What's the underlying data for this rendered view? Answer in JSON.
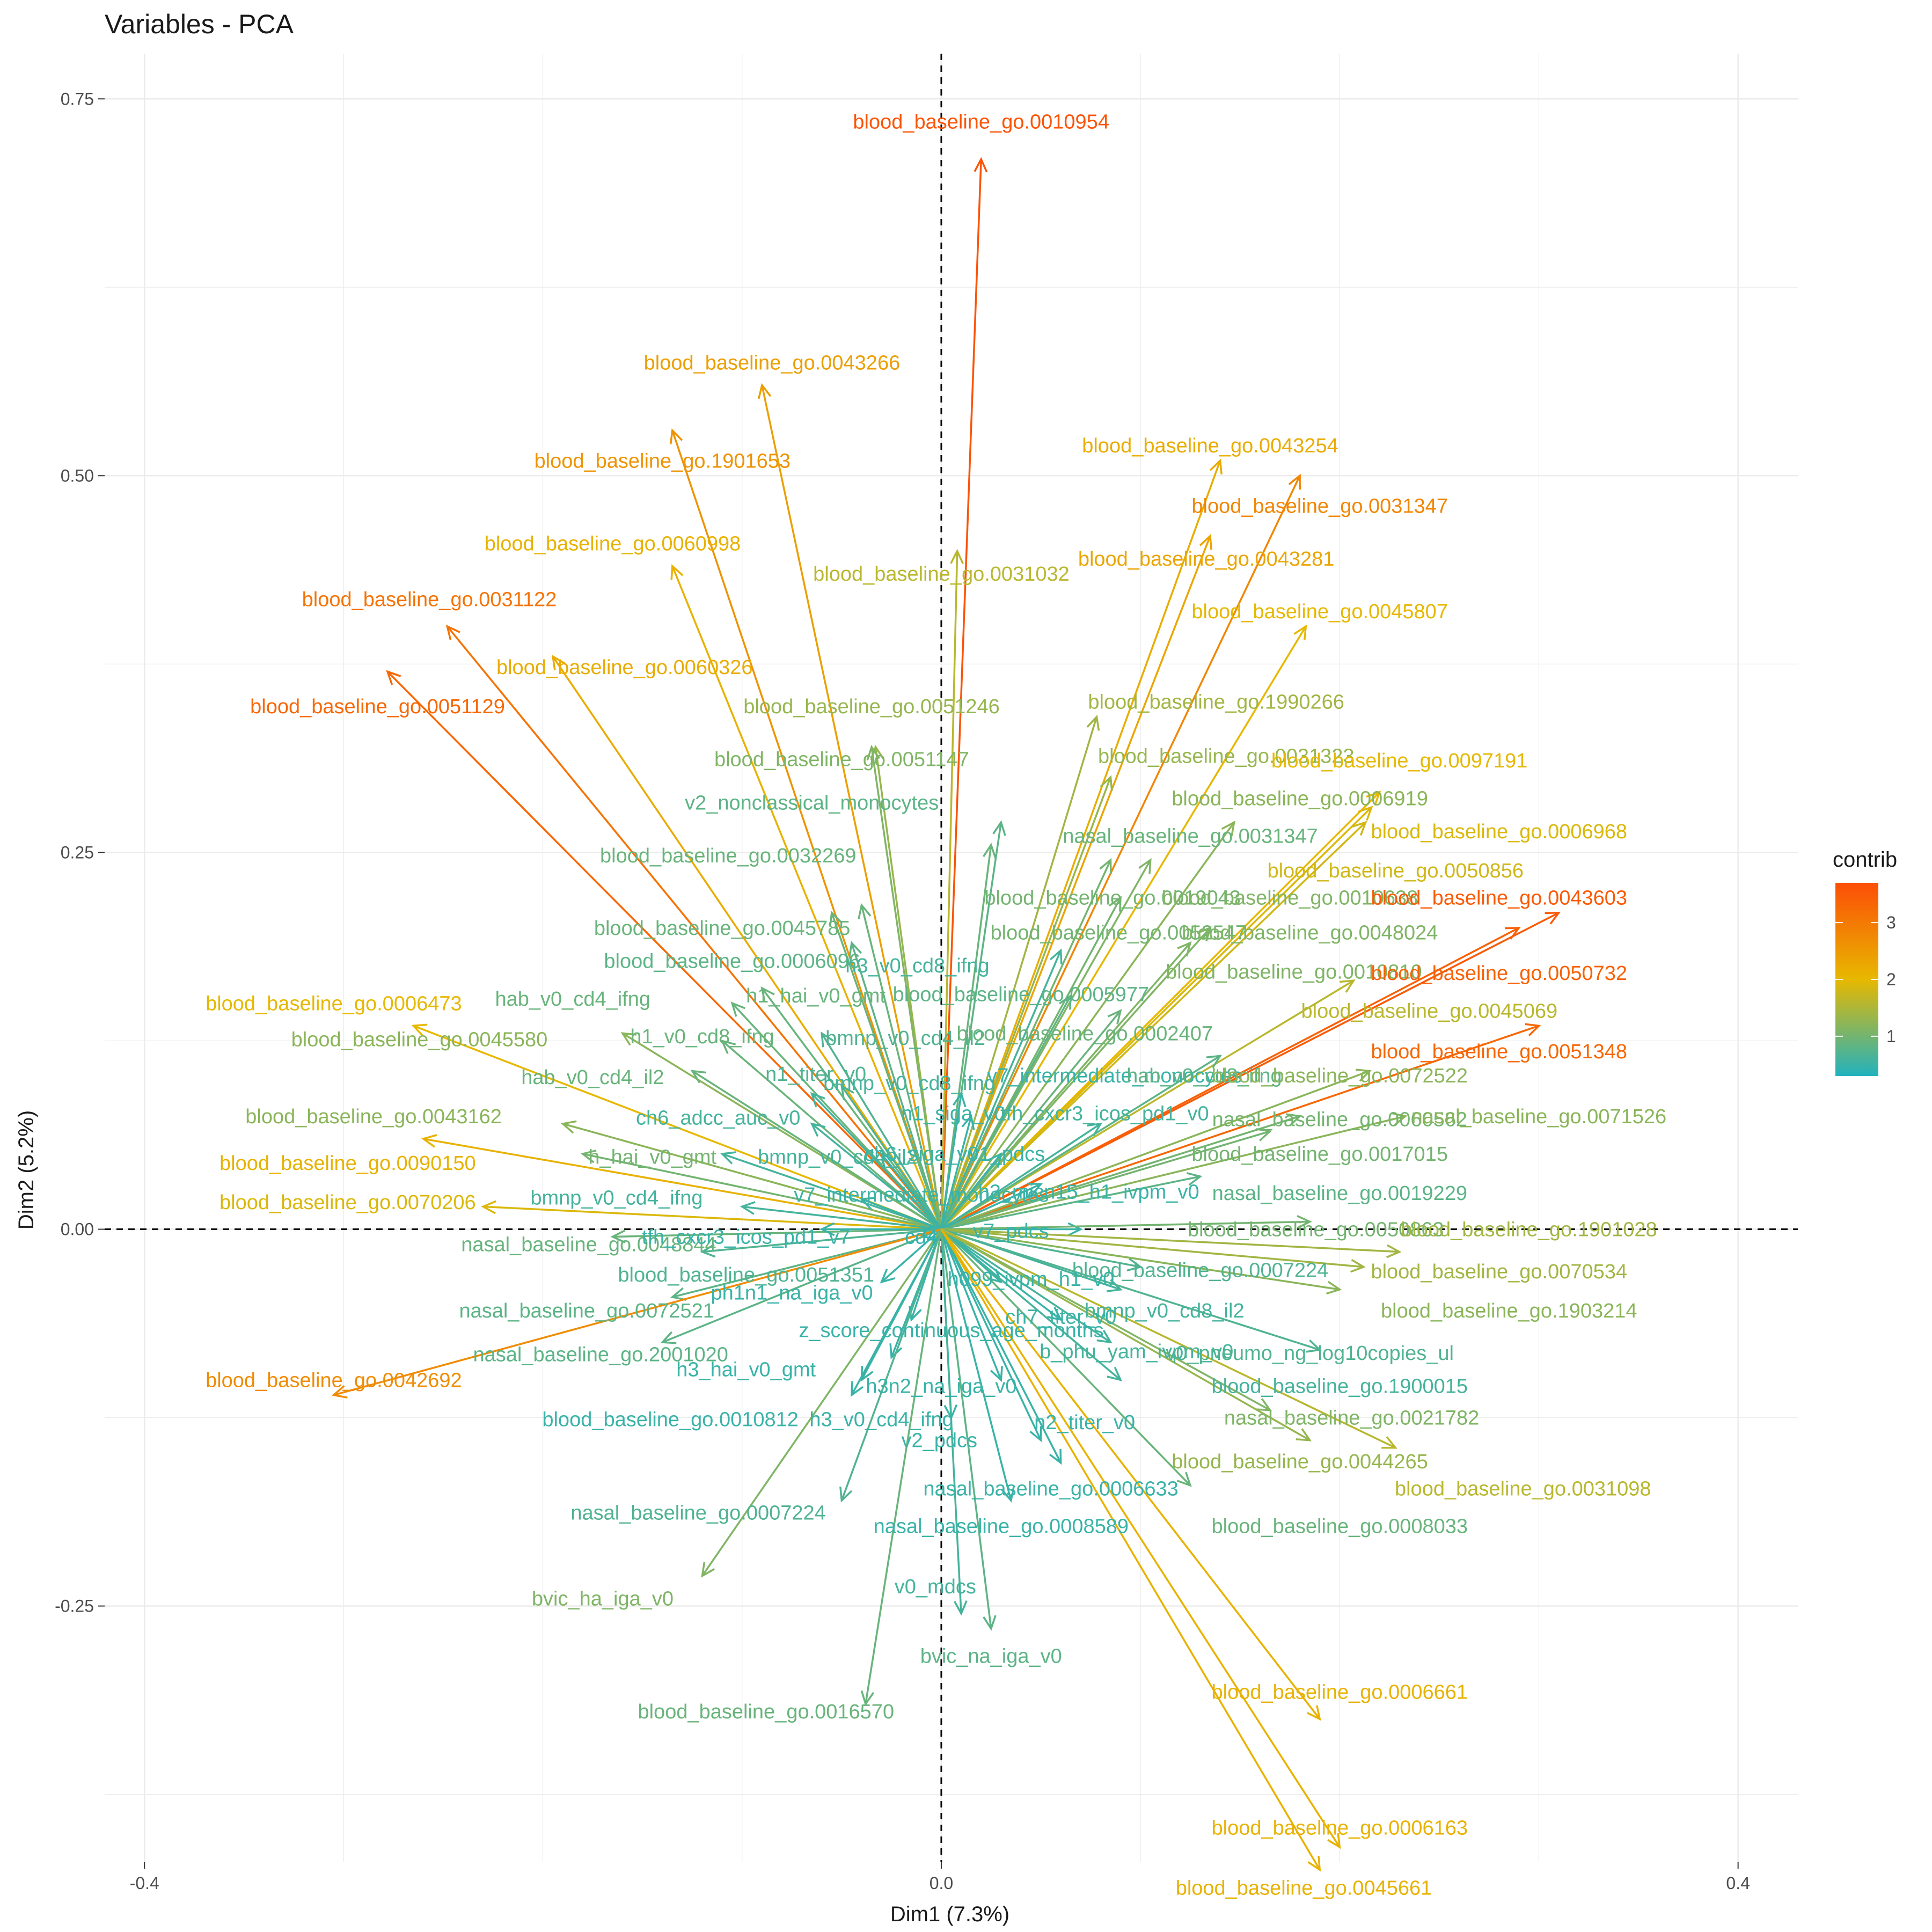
{
  "chart_data": {
    "type": "scatter",
    "title": "Variables - PCA",
    "xlabel": "Dim1 (7.3%)",
    "ylabel": "Dim2 (5.2%)",
    "xlim": [
      -0.42,
      0.43
    ],
    "ylim": [
      -0.42,
      0.78
    ],
    "x_ticks": [
      -0.4,
      0.0,
      0.4
    ],
    "x_tick_labels": [
      "-0.4",
      "0.0",
      "0.4"
    ],
    "y_ticks": [
      -0.25,
      0.0,
      0.25,
      0.5,
      0.75
    ],
    "y_tick_labels": [
      "-0.25",
      "0.00",
      "0.25",
      "0.50",
      "0.75"
    ],
    "grid": true,
    "legend": {
      "title": "contrib",
      "placement": "right",
      "ticks": [
        "1",
        "2",
        "3"
      ],
      "tick_values": [
        1,
        2,
        3
      ],
      "range": [
        0.3,
        3.7
      ]
    },
    "colors": {
      "low": "#22B2BE",
      "mid": "#E7B800",
      "high": "#FC4E07",
      "arrow_default": "#7FA9A8"
    },
    "variables": [
      {
        "name": "blood_baseline_go.0010954",
        "x": 0.02,
        "y": 0.71,
        "contrib": 3.6
      },
      {
        "name": "blood_baseline_go.0043266",
        "x": -0.09,
        "y": 0.56,
        "contrib": 2.4
      },
      {
        "name": "blood_baseline_go.1901653",
        "x": -0.135,
        "y": 0.53,
        "contrib": 2.6
      },
      {
        "name": "blood_baseline_go.0043254",
        "x": 0.14,
        "y": 0.51,
        "contrib": 2.2
      },
      {
        "name": "blood_baseline_go.0031347",
        "x": 0.18,
        "y": 0.5,
        "contrib": 2.8
      },
      {
        "name": "blood_baseline_go.0060998",
        "x": -0.135,
        "y": 0.44,
        "contrib": 2.1
      },
      {
        "name": "blood_baseline_go.0031032",
        "x": 0.008,
        "y": 0.45,
        "contrib": 1.6
      },
      {
        "name": "blood_baseline_go.0043281",
        "x": 0.135,
        "y": 0.46,
        "contrib": 2.3
      },
      {
        "name": "blood_baseline_go.0031122",
        "x": -0.248,
        "y": 0.4,
        "contrib": 3.1
      },
      {
        "name": "blood_baseline_go.0045807",
        "x": 0.183,
        "y": 0.4,
        "contrib": 2.0
      },
      {
        "name": "blood_baseline_go.0060326",
        "x": -0.195,
        "y": 0.38,
        "contrib": 2.2
      },
      {
        "name": "blood_baseline_go.0051129",
        "x": -0.278,
        "y": 0.37,
        "contrib": 3.3
      },
      {
        "name": "blood_baseline_go.0051246",
        "x": -0.033,
        "y": 0.32,
        "contrib": 1.3
      },
      {
        "name": "blood_baseline_go.1990266",
        "x": 0.078,
        "y": 0.34,
        "contrib": 1.4
      },
      {
        "name": "blood_baseline_go.0051147",
        "x": -0.035,
        "y": 0.32,
        "contrib": 1.1
      },
      {
        "name": "blood_baseline_go.0031323",
        "x": 0.085,
        "y": 0.3,
        "contrib": 1.3
      },
      {
        "name": "v2_nonclassical_monocytes",
        "x": 0.03,
        "y": 0.27,
        "contrib": 0.8
      },
      {
        "name": "blood_baseline_go.0097191",
        "x": 0.22,
        "y": 0.29,
        "contrib": 2.0
      },
      {
        "name": "blood_baseline_go.0006919",
        "x": 0.147,
        "y": 0.27,
        "contrib": 1.2
      },
      {
        "name": "nasal_baseline_go.0031347",
        "x": 0.025,
        "y": 0.255,
        "contrib": 0.9
      },
      {
        "name": "blood_baseline_go.0006968",
        "x": 0.216,
        "y": 0.28,
        "contrib": 1.9
      },
      {
        "name": "blood_baseline_go.0032269",
        "x": -0.04,
        "y": 0.215,
        "contrib": 0.9
      },
      {
        "name": "blood_baseline_go.0050856",
        "x": 0.213,
        "y": 0.27,
        "contrib": 1.8
      },
      {
        "name": "blood_baseline_go.0019043",
        "x": 0.085,
        "y": 0.245,
        "contrib": 1.0
      },
      {
        "name": "blood_baseline_go.0010638",
        "x": 0.105,
        "y": 0.245,
        "contrib": 1.1
      },
      {
        "name": "blood_baseline_go.0043603",
        "x": 0.31,
        "y": 0.21,
        "contrib": 3.5
      },
      {
        "name": "blood_baseline_go.0045785",
        "x": -0.055,
        "y": 0.21,
        "contrib": 0.9
      },
      {
        "name": "blood_baseline_go.0052547",
        "x": 0.09,
        "y": 0.22,
        "contrib": 1.0
      },
      {
        "name": "blood_baseline_go.0048024",
        "x": 0.135,
        "y": 0.2,
        "contrib": 1.1
      },
      {
        "name": "blood_baseline_go.0006096",
        "x": -0.045,
        "y": 0.19,
        "contrib": 0.8
      },
      {
        "name": "h3_v0_cd8_ifng",
        "x": 0.06,
        "y": 0.185,
        "contrib": 0.6
      },
      {
        "name": "blood_baseline_go.0010810",
        "x": 0.125,
        "y": 0.19,
        "contrib": 1.1
      },
      {
        "name": "blood_baseline_go.0050732",
        "x": 0.29,
        "y": 0.2,
        "contrib": 3.4
      },
      {
        "name": "blood_baseline_go.0006473",
        "x": -0.265,
        "y": 0.135,
        "contrib": 2.0
      },
      {
        "name": "hab_v0_cd4_ifng",
        "x": -0.105,
        "y": 0.15,
        "contrib": 0.9
      },
      {
        "name": "h1_hai_v0_gmt",
        "x": -0.09,
        "y": 0.16,
        "contrib": 0.9
      },
      {
        "name": "blood_baseline_go.0005977",
        "x": 0.065,
        "y": 0.155,
        "contrib": 0.8
      },
      {
        "name": "blood_baseline_go.0045069",
        "x": 0.207,
        "y": 0.165,
        "contrib": 1.6
      },
      {
        "name": "blood_baseline_go.0045580",
        "x": -0.16,
        "y": 0.13,
        "contrib": 1.2
      },
      {
        "name": "h1_v0_cd8_ifng",
        "x": -0.11,
        "y": 0.125,
        "contrib": 0.9
      },
      {
        "name": "bmnp_v0_cd4_il2",
        "x": -0.06,
        "y": 0.13,
        "contrib": 0.7
      },
      {
        "name": "blood_baseline_go.0002407",
        "x": 0.09,
        "y": 0.145,
        "contrib": 0.9
      },
      {
        "name": "blood_baseline_go.0051348",
        "x": 0.3,
        "y": 0.135,
        "contrib": 3.3
      },
      {
        "name": "hab_v0_cd4_il2",
        "x": -0.125,
        "y": 0.105,
        "contrib": 0.9
      },
      {
        "name": "n1_titer_v0",
        "x": -0.05,
        "y": 0.095,
        "contrib": 0.7
      },
      {
        "name": "bmnp_v0_cd8_ifng",
        "x": -0.065,
        "y": 0.09,
        "contrib": 0.6
      },
      {
        "name": "v7_intermediate_monocytes",
        "x": 0.01,
        "y": 0.09,
        "contrib": 0.5
      },
      {
        "name": "hab_v0_cd8_ifng",
        "x": 0.14,
        "y": 0.115,
        "contrib": 0.8
      },
      {
        "name": "blood_baseline_go.0072522",
        "x": 0.215,
        "y": 0.105,
        "contrib": 1.2
      },
      {
        "name": "blood_baseline_go.0043162",
        "x": -0.19,
        "y": 0.07,
        "contrib": 1.2
      },
      {
        "name": "ch6_adcc_auc_v0",
        "x": -0.065,
        "y": 0.07,
        "contrib": 0.6
      },
      {
        "name": "h1_siga_v0",
        "x": 0.015,
        "y": 0.075,
        "contrib": 0.5
      },
      {
        "name": "tfh_cxcr3_icos_pd1_v0",
        "x": 0.08,
        "y": 0.07,
        "contrib": 0.6
      },
      {
        "name": "nasal_baseline_go.0060562",
        "x": 0.18,
        "y": 0.075,
        "contrib": 1.0
      },
      {
        "name": "nasal_baseline_go.0071526",
        "x": 0.233,
        "y": 0.075,
        "contrib": 1.2
      },
      {
        "name": "blood_baseline_go.0090150",
        "x": -0.26,
        "y": 0.06,
        "contrib": 2.1
      },
      {
        "name": "h_hai_v0_gmt",
        "x": -0.18,
        "y": 0.05,
        "contrib": 1.0
      },
      {
        "name": "bmnp_v0_cd4_il2",
        "x": -0.11,
        "y": 0.05,
        "contrib": 0.6
      },
      {
        "name": "ch6_siga_v0",
        "x": -0.03,
        "y": 0.05,
        "contrib": 0.5
      },
      {
        "name": "v1_pdcs",
        "x": 0.03,
        "y": 0.05,
        "contrib": 0.5
      },
      {
        "name": "blood_baseline_go.0017015",
        "x": 0.165,
        "y": 0.065,
        "contrib": 1.0
      },
      {
        "name": "blood_baseline_go.0070206",
        "x": -0.23,
        "y": 0.015,
        "contrib": 1.9
      },
      {
        "name": "bmnp_v0_cd4_ifng",
        "x": -0.1,
        "y": 0.015,
        "contrib": 0.6
      },
      {
        "name": "v7_intermediate_monocytes",
        "x": -0.04,
        "y": 0.02,
        "contrib": 0.5
      },
      {
        "name": "h3_micn15_h1_ivpm_v0",
        "x": 0.05,
        "y": 0.03,
        "contrib": 0.5
      },
      {
        "name": "nasal_baseline_go.0019229",
        "x": 0.13,
        "y": 0.035,
        "contrib": 0.8
      },
      {
        "name": "nasal_baseline_go.0048844",
        "x": -0.165,
        "y": -0.005,
        "contrib": 0.9
      },
      {
        "name": "tfh_cxcr3_icos_pd1_v7",
        "x": -0.06,
        "y": 0.0,
        "contrib": 0.5
      },
      {
        "name": "cd4",
        "x": -0.01,
        "y": -0.005,
        "contrib": 0.4
      },
      {
        "name": "v7_pdcs",
        "x": 0.07,
        "y": 0.0,
        "contrib": 0.5
      },
      {
        "name": "blood_baseline_go.0050863",
        "x": 0.185,
        "y": 0.005,
        "contrib": 1.0
      },
      {
        "name": "blood_baseline_go.1901028",
        "x": 0.23,
        "y": -0.015,
        "contrib": 1.4
      },
      {
        "name": "blood_baseline_go.0051351",
        "x": -0.12,
        "y": -0.015,
        "contrib": 0.7
      },
      {
        "name": "blood_baseline_go.0007224",
        "x": 0.1,
        "y": -0.025,
        "contrib": 0.7
      },
      {
        "name": "blood_baseline_go.0070534",
        "x": 0.212,
        "y": -0.025,
        "contrib": 1.4
      },
      {
        "name": "ph1n1_na_iga_v0",
        "x": -0.03,
        "y": -0.035,
        "contrib": 0.5
      },
      {
        "name": "h099_ivpm_h1_v0",
        "x": 0.03,
        "y": -0.035,
        "contrib": 0.5
      },
      {
        "name": "nasal_baseline_go.0072521",
        "x": -0.135,
        "y": -0.045,
        "contrib": 0.8
      },
      {
        "name": "bmnp_v0_cd8_il2",
        "x": 0.09,
        "y": -0.04,
        "contrib": 0.6
      },
      {
        "name": "blood_baseline_go.1903214",
        "x": 0.2,
        "y": -0.04,
        "contrib": 1.2
      },
      {
        "name": "ch7_titer_v0",
        "x": 0.06,
        "y": -0.06,
        "contrib": 0.5
      },
      {
        "name": "z_score_continuous_age_months",
        "x": -0.015,
        "y": -0.06,
        "contrib": 0.5
      },
      {
        "name": "nasal_baseline_go.2001020",
        "x": -0.14,
        "y": -0.075,
        "contrib": 0.8
      },
      {
        "name": "b_phu_yam_ivpm_v0",
        "x": 0.085,
        "y": -0.075,
        "contrib": 0.6
      },
      {
        "name": "v0_pneumo_ng_log10copies_ul",
        "x": 0.19,
        "y": -0.08,
        "contrib": 0.7
      },
      {
        "name": "h3_hai_v0_gmt",
        "x": -0.025,
        "y": -0.085,
        "contrib": 0.5
      },
      {
        "name": "h3n2_na_iga_v0",
        "x": 0.03,
        "y": -0.1,
        "contrib": 0.5
      },
      {
        "name": "blood_baseline_go.1900015",
        "x": 0.09,
        "y": -0.1,
        "contrib": 0.6
      },
      {
        "name": "blood_baseline_go.0042692",
        "x": -0.305,
        "y": -0.11,
        "contrib": 2.7
      },
      {
        "name": "blood_baseline_go.0010812",
        "x": -0.04,
        "y": -0.1,
        "contrib": 0.5
      },
      {
        "name": "h3_v0_cd4_ifng",
        "x": -0.045,
        "y": -0.11,
        "contrib": 0.5
      },
      {
        "name": "nasal_baseline_go.0021782",
        "x": 0.165,
        "y": -0.12,
        "contrib": 1.1
      },
      {
        "name": "n2_titer_v0",
        "x": 0.05,
        "y": -0.14,
        "contrib": 0.5
      },
      {
        "name": "v2_pdcs",
        "x": 0.005,
        "y": -0.125,
        "contrib": 0.5
      },
      {
        "name": "blood_baseline_go.0044265",
        "x": 0.185,
        "y": -0.14,
        "contrib": 1.3
      },
      {
        "name": "blood_baseline_go.0031098",
        "x": 0.228,
        "y": -0.145,
        "contrib": 1.6
      },
      {
        "name": "nasal_baseline_go.0006633",
        "x": 0.06,
        "y": -0.155,
        "contrib": 0.5
      },
      {
        "name": "nasal_baseline_go.0007224",
        "x": -0.05,
        "y": -0.18,
        "contrib": 0.7
      },
      {
        "name": "nasal_baseline_go.0008589",
        "x": 0.035,
        "y": -0.18,
        "contrib": 0.5
      },
      {
        "name": "blood_baseline_go.0008033",
        "x": 0.125,
        "y": -0.17,
        "contrib": 0.9
      },
      {
        "name": "bvic_ha_iga_v0",
        "x": -0.12,
        "y": -0.23,
        "contrib": 1.1
      },
      {
        "name": "v0_mdcs",
        "x": 0.01,
        "y": -0.255,
        "contrib": 0.6
      },
      {
        "name": "bvic_na_iga_v0",
        "x": 0.025,
        "y": -0.265,
        "contrib": 0.8
      },
      {
        "name": "blood_baseline_go.0016570",
        "x": -0.038,
        "y": -0.315,
        "contrib": 0.9
      },
      {
        "name": "blood_baseline_go.0006661",
        "x": 0.19,
        "y": -0.325,
        "contrib": 2.1
      },
      {
        "name": "blood_baseline_go.0006163",
        "x": 0.2,
        "y": -0.41,
        "contrib": 2.1
      },
      {
        "name": "blood_baseline_go.0045661",
        "x": 0.19,
        "y": -0.425,
        "contrib": 2.1
      }
    ],
    "label_anchors": [
      [
        0.02,
        0.735
      ],
      [
        -0.085,
        0.575
      ],
      [
        -0.14,
        0.51
      ],
      [
        0.135,
        0.52
      ],
      [
        0.19,
        0.48
      ],
      [
        -0.165,
        0.455
      ],
      [
        0.0,
        0.435
      ],
      [
        0.133,
        0.445
      ],
      [
        -0.257,
        0.418
      ],
      [
        0.19,
        0.41
      ],
      [
        -0.159,
        0.373
      ],
      [
        -0.283,
        0.347
      ],
      [
        -0.035,
        0.347
      ],
      [
        0.138,
        0.35
      ],
      [
        -0.05,
        0.312
      ],
      [
        0.143,
        0.314
      ],
      [
        -0.065,
        0.283
      ],
      [
        0.23,
        0.311
      ],
      [
        0.18,
        0.286
      ],
      [
        0.125,
        0.261
      ],
      [
        0.28,
        0.264
      ],
      [
        -0.107,
        0.248
      ],
      [
        0.228,
        0.238
      ],
      [
        0.086,
        0.22
      ],
      [
        0.175,
        0.22
      ],
      [
        0.28,
        0.22
      ],
      [
        -0.11,
        0.2
      ],
      [
        0.089,
        0.197
      ],
      [
        0.185,
        0.197
      ],
      [
        -0.105,
        0.178
      ],
      [
        -0.012,
        0.175
      ],
      [
        0.177,
        0.171
      ],
      [
        0.28,
        0.17
      ],
      [
        -0.305,
        0.15
      ],
      [
        -0.185,
        0.153
      ],
      [
        -0.063,
        0.155
      ],
      [
        0.04,
        0.156
      ],
      [
        0.245,
        0.145
      ],
      [
        -0.262,
        0.126
      ],
      [
        -0.12,
        0.128
      ],
      [
        -0.018,
        0.127
      ],
      [
        0.072,
        0.13
      ],
      [
        0.28,
        0.118
      ],
      [
        -0.175,
        0.101
      ],
      [
        -0.063,
        0.103
      ],
      [
        -0.016,
        0.097
      ],
      [
        0.087,
        0.102
      ],
      [
        0.132,
        0.102
      ],
      [
        0.2,
        0.102
      ],
      [
        -0.285,
        0.075
      ],
      [
        -0.112,
        0.074
      ],
      [
        0.006,
        0.077
      ],
      [
        0.082,
        0.077
      ],
      [
        0.2,
        0.073
      ],
      [
        0.3,
        0.075
      ],
      [
        -0.298,
        0.044
      ],
      [
        -0.145,
        0.048
      ],
      [
        -0.052,
        0.048
      ],
      [
        -0.01,
        0.05
      ],
      [
        0.033,
        0.05
      ],
      [
        0.19,
        0.05
      ],
      [
        -0.298,
        0.018
      ],
      [
        -0.163,
        0.021
      ],
      [
        -0.01,
        0.023
      ],
      [
        0.074,
        0.025
      ],
      [
        0.2,
        0.024
      ],
      [
        -0.177,
        -0.01
      ],
      [
        -0.098,
        -0.005
      ],
      [
        -0.01,
        -0.005
      ],
      [
        0.035,
        -0.001
      ],
      [
        0.188,
        0.0
      ],
      [
        0.295,
        0.0
      ],
      [
        -0.098,
        -0.03
      ],
      [
        0.13,
        -0.027
      ],
      [
        0.28,
        -0.028
      ],
      [
        -0.075,
        -0.042
      ],
      [
        0.045,
        -0.033
      ],
      [
        -0.178,
        -0.054
      ],
      [
        0.112,
        -0.054
      ],
      [
        0.285,
        -0.054
      ],
      [
        0.06,
        -0.058
      ],
      [
        0.005,
        -0.067
      ],
      [
        -0.171,
        -0.083
      ],
      [
        0.098,
        -0.081
      ],
      [
        0.185,
        -0.082
      ],
      [
        -0.098,
        -0.093
      ],
      [
        0.0,
        -0.104
      ],
      [
        0.2,
        -0.104
      ],
      [
        -0.305,
        -0.1
      ],
      [
        -0.136,
        -0.126
      ],
      [
        -0.03,
        -0.126
      ],
      [
        0.206,
        -0.125
      ],
      [
        0.072,
        -0.128
      ],
      [
        -0.001,
        -0.14
      ],
      [
        0.18,
        -0.154
      ],
      [
        0.292,
        -0.172
      ],
      [
        0.055,
        -0.172
      ],
      [
        -0.122,
        -0.188
      ],
      [
        0.03,
        -0.197
      ],
      [
        0.2,
        -0.197
      ],
      [
        -0.17,
        -0.245
      ],
      [
        -0.003,
        -0.237
      ],
      [
        0.025,
        -0.283
      ],
      [
        -0.088,
        -0.32
      ],
      [
        0.2,
        -0.307
      ],
      [
        0.2,
        -0.397
      ],
      [
        0.182,
        -0.437
      ]
    ]
  }
}
